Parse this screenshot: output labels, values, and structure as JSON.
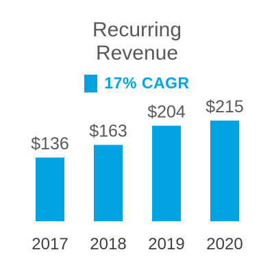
{
  "chart_data": {
    "type": "bar",
    "title": [
      "Recurring",
      "Revenue"
    ],
    "categories": [
      "2017",
      "2018",
      "2019",
      "2020"
    ],
    "values": [
      136,
      163,
      204,
      215
    ],
    "value_labels": [
      "$136",
      "$163",
      "$204",
      "$215"
    ],
    "legend": [
      {
        "label": "17% CAGR",
        "color": "#00a3e0"
      }
    ],
    "legend_position": "top-center",
    "bar_color": "#00a3e0",
    "ylim": [
      0,
      230
    ],
    "grid": false
  }
}
